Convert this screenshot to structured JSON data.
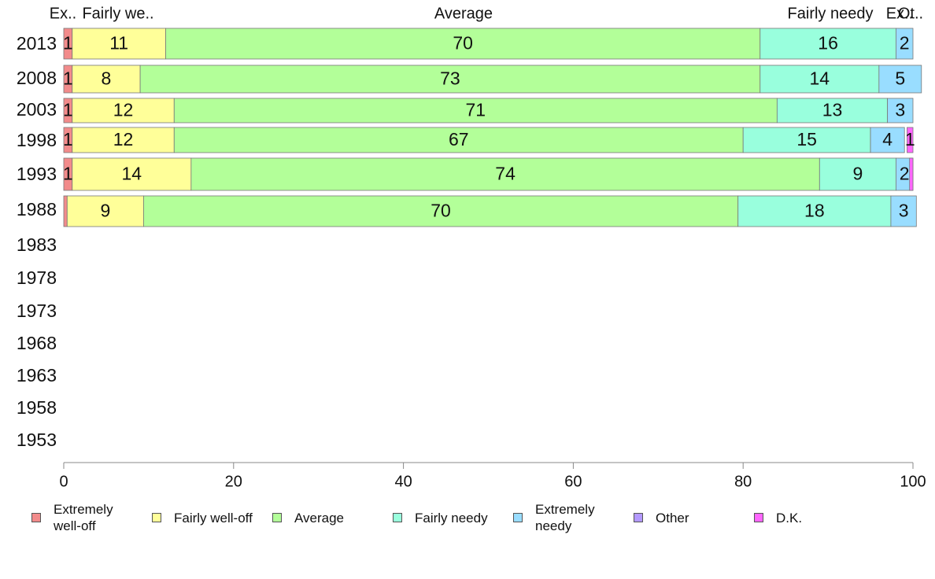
{
  "chart_data": {
    "type": "bar",
    "orientation": "horizontal-stacked",
    "categories": [
      "2013",
      "2008",
      "2003",
      "1998",
      "1993",
      "1988",
      "1983",
      "1978",
      "1973",
      "1968",
      "1963",
      "1958",
      "1953"
    ],
    "top_labels": [
      "Ex..",
      "Fairly we..",
      "Average",
      "Fairly needy",
      "Ex..",
      "Ot.."
    ],
    "series": [
      {
        "name": "Extremely\nwell-off",
        "color": "#f28b8b",
        "values": [
          1,
          1,
          1,
          1,
          1,
          0.4,
          null,
          null,
          null,
          null,
          null,
          null,
          null
        ],
        "labels": [
          "1",
          "1",
          "1",
          "1",
          "1",
          "",
          "",
          "",
          "",
          "",
          "",
          "",
          ""
        ]
      },
      {
        "name": "Fairly well-off",
        "color": "#ffff99",
        "values": [
          11,
          8,
          12,
          12,
          14,
          9,
          null,
          null,
          null,
          null,
          null,
          null,
          null
        ],
        "labels": [
          "11",
          "8",
          "12",
          "12",
          "14",
          "9",
          "",
          "",
          "",
          "",
          "",
          "",
          ""
        ]
      },
      {
        "name": "Average",
        "color": "#b3ff99",
        "values": [
          70,
          73,
          71,
          67,
          74,
          70,
          null,
          null,
          null,
          null,
          null,
          null,
          null
        ],
        "labels": [
          "70",
          "73",
          "71",
          "67",
          "74",
          "70",
          "",
          "",
          "",
          "",
          "",
          "",
          ""
        ]
      },
      {
        "name": "Fairly needy",
        "color": "#99ffdd",
        "values": [
          16,
          14,
          13,
          15,
          9,
          18,
          null,
          null,
          null,
          null,
          null,
          null,
          null
        ],
        "labels": [
          "16",
          "14",
          "13",
          "15",
          "9",
          "18",
          "",
          "",
          "",
          "",
          "",
          "",
          ""
        ]
      },
      {
        "name": "Extremely\nneedy",
        "color": "#99ddff",
        "values": [
          2,
          5,
          3,
          4,
          2,
          3,
          null,
          null,
          null,
          null,
          null,
          null,
          null
        ],
        "labels": [
          "2",
          "5",
          "3",
          "4",
          "2",
          "3",
          "",
          "",
          "",
          "",
          "",
          "",
          ""
        ]
      },
      {
        "name": "Other",
        "color": "#b399ff",
        "values": [
          0,
          0,
          0,
          0,
          0,
          0,
          null,
          null,
          null,
          null,
          null,
          null,
          null
        ],
        "labels": [
          "",
          "",
          "",
          "",
          "",
          "",
          "",
          "",
          "",
          "",
          "",
          "",
          ""
        ]
      },
      {
        "name": "D.K.",
        "color": "#ff66ff",
        "values": [
          0,
          0,
          0,
          0.7,
          0.4,
          0,
          null,
          null,
          null,
          null,
          null,
          null,
          null
        ],
        "labels": [
          "",
          "",
          "",
          "1",
          "",
          "",
          "",
          "",
          "",
          "",
          "",
          "",
          ""
        ]
      }
    ],
    "xlim": [
      0,
      100
    ],
    "xticks": [
      "0",
      "20",
      "40",
      "60",
      "80",
      "100"
    ],
    "grid": false,
    "legend_position": "bottom"
  }
}
